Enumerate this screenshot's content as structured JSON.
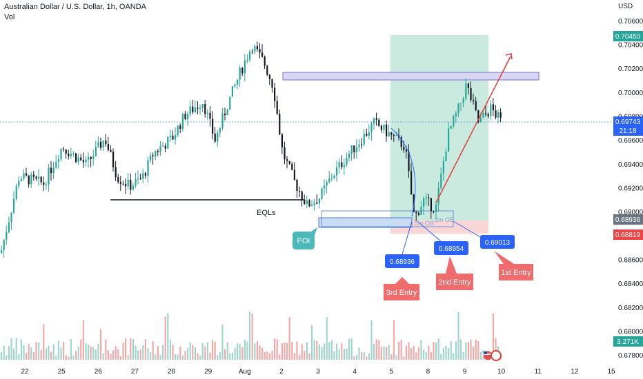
{
  "header": {
    "symbol_title": "Australian Dollar / U.S. Dollar, 1h, OANDA",
    "volume_label": "Vol",
    "currency_label": "USD"
  },
  "colors": {
    "up": "#26a69a",
    "down": "#131722",
    "vol_up": "#9fd7cf",
    "vol_down": "#f5a8a8",
    "blue_label": "#2962ff",
    "red_label": "#f06b6b",
    "target_zone": "#b8e3d4",
    "stop_zone": "#f9cfcf",
    "zone_purple": "#d8d6f5",
    "zone_blue": "#c9dcf3",
    "poi": "#4cb8b8",
    "arrow": "#e53935",
    "last_price_line": "#6fa8dc"
  },
  "chart_data": {
    "type": "candlestick",
    "title": "Australian Dollar / U.S. Dollar, 1h, OANDA",
    "y_axis": {
      "unit": "USD",
      "range": [
        0.6772,
        0.7072
      ],
      "tick_labels": [
        "0.70600",
        "0.70400",
        "0.70200",
        "0.70000",
        "0.69800",
        "0.69600",
        "0.69400",
        "0.69200",
        "0.69000",
        "0.68800",
        "0.68600",
        "0.68400",
        "0.68200",
        "0.68000",
        "0.67800"
      ]
    },
    "x_axis": {
      "tick_labels": [
        "22",
        "25",
        "26",
        "27",
        "28",
        "29",
        "Aug",
        "2",
        "3",
        "4",
        "5",
        "8",
        "9",
        "10",
        "11",
        "12",
        "15"
      ]
    },
    "price_path": [
      [
        0,
        0.6866
      ],
      [
        0.03,
        0.693
      ],
      [
        0.07,
        0.6924
      ],
      [
        0.1,
        0.6955
      ],
      [
        0.14,
        0.694
      ],
      [
        0.17,
        0.6962
      ],
      [
        0.19,
        0.693
      ],
      [
        0.21,
        0.6922
      ],
      [
        0.23,
        0.6928
      ],
      [
        0.25,
        0.695
      ],
      [
        0.28,
        0.6962
      ],
      [
        0.3,
        0.6981
      ],
      [
        0.33,
        0.6993
      ],
      [
        0.35,
        0.696
      ],
      [
        0.37,
        0.699
      ],
      [
        0.39,
        0.7016
      ],
      [
        0.41,
        0.704
      ],
      [
        0.43,
        0.7025
      ],
      [
        0.445,
        0.7005
      ],
      [
        0.46,
        0.695
      ],
      [
        0.48,
        0.6925
      ],
      [
        0.5,
        0.6906
      ],
      [
        0.52,
        0.6912
      ],
      [
        0.54,
        0.693
      ],
      [
        0.57,
        0.695
      ],
      [
        0.59,
        0.6962
      ],
      [
        0.61,
        0.6975
      ],
      [
        0.63,
        0.6967
      ],
      [
        0.66,
        0.6955
      ],
      [
        0.675,
        0.6895
      ],
      [
        0.69,
        0.691
      ],
      [
        0.71,
        0.6903
      ],
      [
        0.73,
        0.6965
      ],
      [
        0.75,
        0.699
      ],
      [
        0.76,
        0.7007
      ],
      [
        0.78,
        0.6975
      ],
      [
        0.8,
        0.6987
      ],
      [
        0.82,
        0.6974
      ]
    ],
    "price_labels": {
      "target": "0.70450",
      "last_price": "0.69743",
      "countdown": "21:18",
      "entry_level": "0.68936",
      "stop_level": "0.68819",
      "volume_last": "3.271K"
    },
    "annotations": {
      "eqls": "EQLs",
      "poi": "POI",
      "ob_5m": "5m OB",
      "ob_2m": "2m OB",
      "entries": [
        {
          "price": "0.69013",
          "label": "1st Entry"
        },
        {
          "price": "0.68954",
          "label": "2nd Entry"
        },
        {
          "price": "0.68936",
          "label": "3rd Entry"
        }
      ]
    },
    "levels": {
      "supply_zone": [
        0.7008,
        0.7015
      ],
      "poi_zone": [
        0.6889,
        0.6897
      ],
      "ob_zone": [
        0.6895,
        0.6904
      ],
      "eqls_line": 0.691,
      "target_zone": [
        0.6896,
        0.7045
      ],
      "stop_zone": [
        0.6882,
        0.6896
      ]
    },
    "grid": false,
    "legend": "none"
  }
}
